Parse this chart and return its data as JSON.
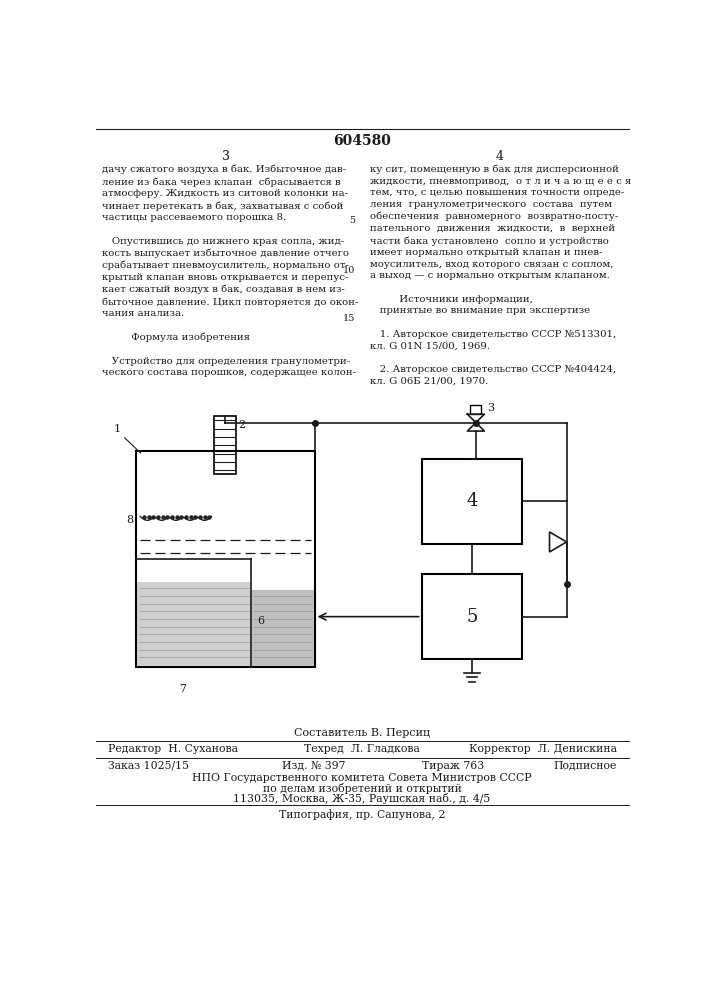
{
  "patent_number": "604580",
  "page_left": "3",
  "page_right": "4",
  "text_left": "дачу сжатого воздуха в бак. Избыточное дав-\nление из бака через клапан  сбрасывается в\nатмосферу. Жидкость из ситовой колонки на-\nчинает перетекать в бак, захватывая с собой\nчастицы рассеваемого порошка 8.\n\n   Опустившись до нижнего края сопла, жид-\nкость выпускает избыточное давление отчего\nсрабатывает пневмоусилитель, нормально от-\nкрытый клапан вновь открывается и перепус-\nкает сжатый воздух в бак, создавая в нем из-\nбыточное давление. Цикл повторяется до окон-\nчания анализа.\n\n         Формула изобретения\n\n   Устройство для определения гранулометри-\nческого состава порошков, содержащее колон-",
  "text_right": "ку сит, помещенную в бак для дисперсионной\nжидкости, пневмопривод,  о т л и ч а ю щ е е с я\nтем, что, с целью повышения точности опреде-\nления  гранулометрического  состава  путем\nобеспечения  равномерного  возвратно-посту-\nпательного  движения  жидкости,  в  верхней\nчасти бака установлено  сопло и устройство\nимеет нормально открытый клапан и пнев-\nмоусилитель, вход которого связан с соплом,\nа выход — с нормально открытым клапаном.\n\n         Источники информации,\n   принятые во внимание при экспертизе\n\n   1. Авторское свидетельство СССР №513301,\nкл. G 01N 15/00, 1969.\n\n   2. Авторское свидетельство СССР №404424,\nкл. G 06Б 21/00, 1970.",
  "line_num_5": "5",
  "line_num_10": "10",
  "line_num_15": "15",
  "composer": "Составитель В. Персиц",
  "editor": "Редактор  Н. Суханова",
  "techred": "Техред  Л. Гладкова",
  "corrector": "Корректор  Л. Денискина",
  "order": "Заказ 1025/15",
  "izdanie": "Изд. № 397",
  "tirazh": "Тираж 763",
  "podpisnoe": "Подписное",
  "org_line1": "НПО Государственного комитета Совета Министров СССР",
  "org_line2": "по делам изобретений и открытий",
  "org_line3": "113035, Москва, Ж-35, Раушская наб., д. 4/5",
  "tipografia": "Типография, пр. Сапунова, 2",
  "bg_color": "#ffffff",
  "text_color": "#1a1a1a",
  "line_color": "#1a1a1a"
}
